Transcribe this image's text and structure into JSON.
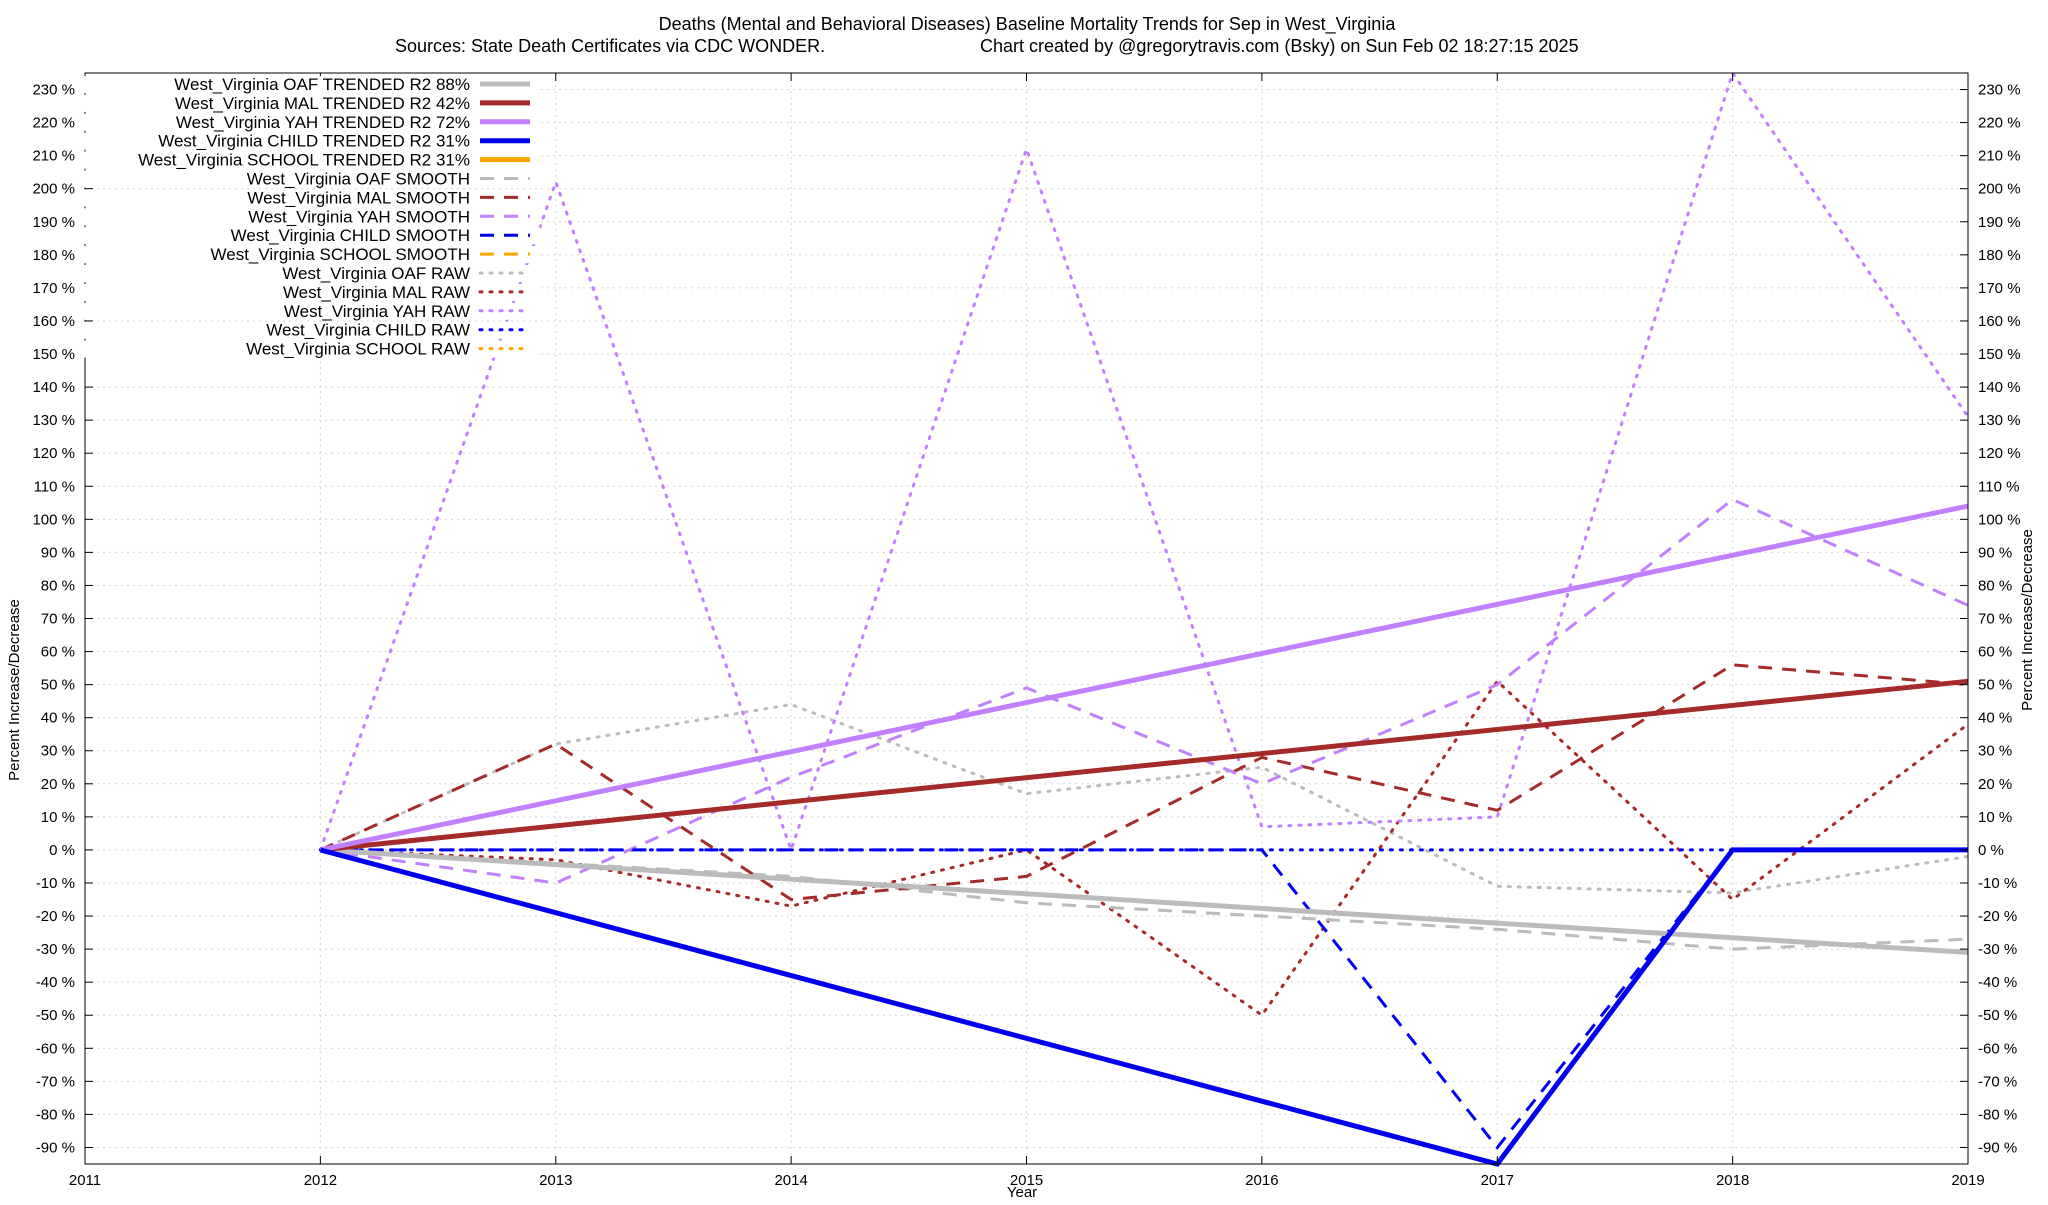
{
  "chart_data": {
    "type": "line",
    "title_line1": "Deaths (Mental and Behavioral Diseases)  Baseline Mortality Trends for Sep in West_Virginia",
    "title_line2_left": "Sources: State Death Certificates via CDC WONDER.",
    "title_line2_right": "Chart created by @gregorytravis.com (Bsky) on Sun Feb 02 18:27:15 2025",
    "xlabel": "Year",
    "ylabel_left": "Percent Increase/Decrease",
    "ylabel_right": "Percent Increase/Decrease",
    "xlim": [
      2011,
      2019
    ],
    "ylim": [
      -95,
      235
    ],
    "x_ticks": [
      2011,
      2012,
      2013,
      2014,
      2015,
      2016,
      2017,
      2018,
      2019
    ],
    "y_ticks": [
      -90,
      -80,
      -70,
      -60,
      -50,
      -40,
      -30,
      -20,
      -10,
      0,
      10,
      20,
      30,
      40,
      50,
      60,
      70,
      80,
      90,
      100,
      110,
      120,
      130,
      140,
      150,
      160,
      170,
      180,
      190,
      200,
      210,
      220,
      230
    ],
    "y_tick_suffix": " %",
    "grid": true,
    "legend_position": "top-left",
    "series": [
      {
        "name": "West_Virginia OAF TRENDED R2  88%",
        "color": "#bbbbbb",
        "style": "solid",
        "width": 5,
        "x": [
          2012,
          2019
        ],
        "values": [
          0,
          -31
        ]
      },
      {
        "name": "West_Virginia MAL TRENDED R2  42%",
        "color": "#a52a2a",
        "style": "solid",
        "width": 5,
        "x": [
          2012,
          2019
        ],
        "values": [
          0,
          51
        ]
      },
      {
        "name": "West_Virginia YAH TRENDED R2  72%",
        "color": "#c080ff",
        "style": "solid",
        "width": 5,
        "x": [
          2012,
          2019
        ],
        "values": [
          0,
          104
        ]
      },
      {
        "name": "West_Virginia CHILD TRENDED R2  31%",
        "color": "#0000ee",
        "style": "solid",
        "width": 5,
        "x": [
          2012,
          2017,
          2018,
          2019
        ],
        "values": [
          0,
          -95,
          0,
          0
        ]
      },
      {
        "name": "West_Virginia SCHOOL TRENDED R2  31%",
        "color": "#ffa500",
        "style": "solid",
        "width": 5,
        "x": [],
        "values": []
      },
      {
        "name": "West_Virginia OAF SMOOTH",
        "color": "#bbbbbb",
        "style": "dashed",
        "width": 3,
        "x": [
          2012,
          2013,
          2014,
          2015,
          2016,
          2017,
          2018,
          2019
        ],
        "values": [
          0,
          -4,
          -8,
          -16,
          -20,
          -24,
          -30,
          -27
        ]
      },
      {
        "name": "West_Virginia MAL SMOOTH",
        "color": "#a52a2a",
        "style": "dashed",
        "width": 3,
        "x": [
          2012,
          2013,
          2014,
          2015,
          2016,
          2017,
          2018,
          2019
        ],
        "values": [
          0,
          32,
          -15,
          -8,
          28,
          12,
          56,
          50
        ]
      },
      {
        "name": "West_Virginia YAH SMOOTH",
        "color": "#c080ff",
        "style": "dashed",
        "width": 3,
        "x": [
          2012,
          2013,
          2014,
          2015,
          2016,
          2017,
          2018,
          2019
        ],
        "values": [
          0,
          -10,
          22,
          49,
          20,
          50,
          106,
          74
        ]
      },
      {
        "name": "West_Virginia CHILD SMOOTH",
        "color": "#0000ee",
        "style": "dashed",
        "width": 3,
        "x": [
          2012,
          2013,
          2014,
          2015,
          2016,
          2017,
          2018,
          2019
        ],
        "values": [
          0,
          0,
          0,
          0,
          0,
          -90,
          0,
          0
        ]
      },
      {
        "name": "West_Virginia SCHOOL SMOOTH",
        "color": "#ffa500",
        "style": "dashed",
        "width": 3,
        "x": [],
        "values": []
      },
      {
        "name": "West_Virginia OAF RAW",
        "color": "#bbbbbb",
        "style": "dotted",
        "width": 3,
        "x": [
          2012,
          2013,
          2014,
          2015,
          2016,
          2017,
          2018,
          2019
        ],
        "values": [
          0,
          32,
          44,
          17,
          25,
          -11,
          -13,
          -2
        ]
      },
      {
        "name": "West_Virginia MAL RAW",
        "color": "#a52a2a",
        "style": "dotted",
        "width": 3,
        "x": [
          2012,
          2013,
          2014,
          2015,
          2016,
          2017,
          2018,
          2019
        ],
        "values": [
          0,
          -3,
          -17,
          0,
          -50,
          51,
          -15,
          38
        ]
      },
      {
        "name": "West_Virginia YAH RAW",
        "color": "#c080ff",
        "style": "dotted",
        "width": 3,
        "x": [
          2012,
          2013,
          2014,
          2015,
          2016,
          2017,
          2018,
          2019
        ],
        "values": [
          0,
          202,
          0,
          212,
          7,
          10,
          235,
          131
        ]
      },
      {
        "name": "West_Virginia CHILD RAW",
        "color": "#0000ee",
        "style": "dotted",
        "width": 3,
        "x": [
          2012,
          2013,
          2014,
          2015,
          2016,
          2017,
          2018,
          2019
        ],
        "values": [
          0,
          0,
          0,
          0,
          0,
          0,
          0,
          0
        ]
      },
      {
        "name": "West_Virginia SCHOOL RAW",
        "color": "#ffa500",
        "style": "dotted",
        "width": 3,
        "x": [],
        "values": []
      }
    ]
  }
}
